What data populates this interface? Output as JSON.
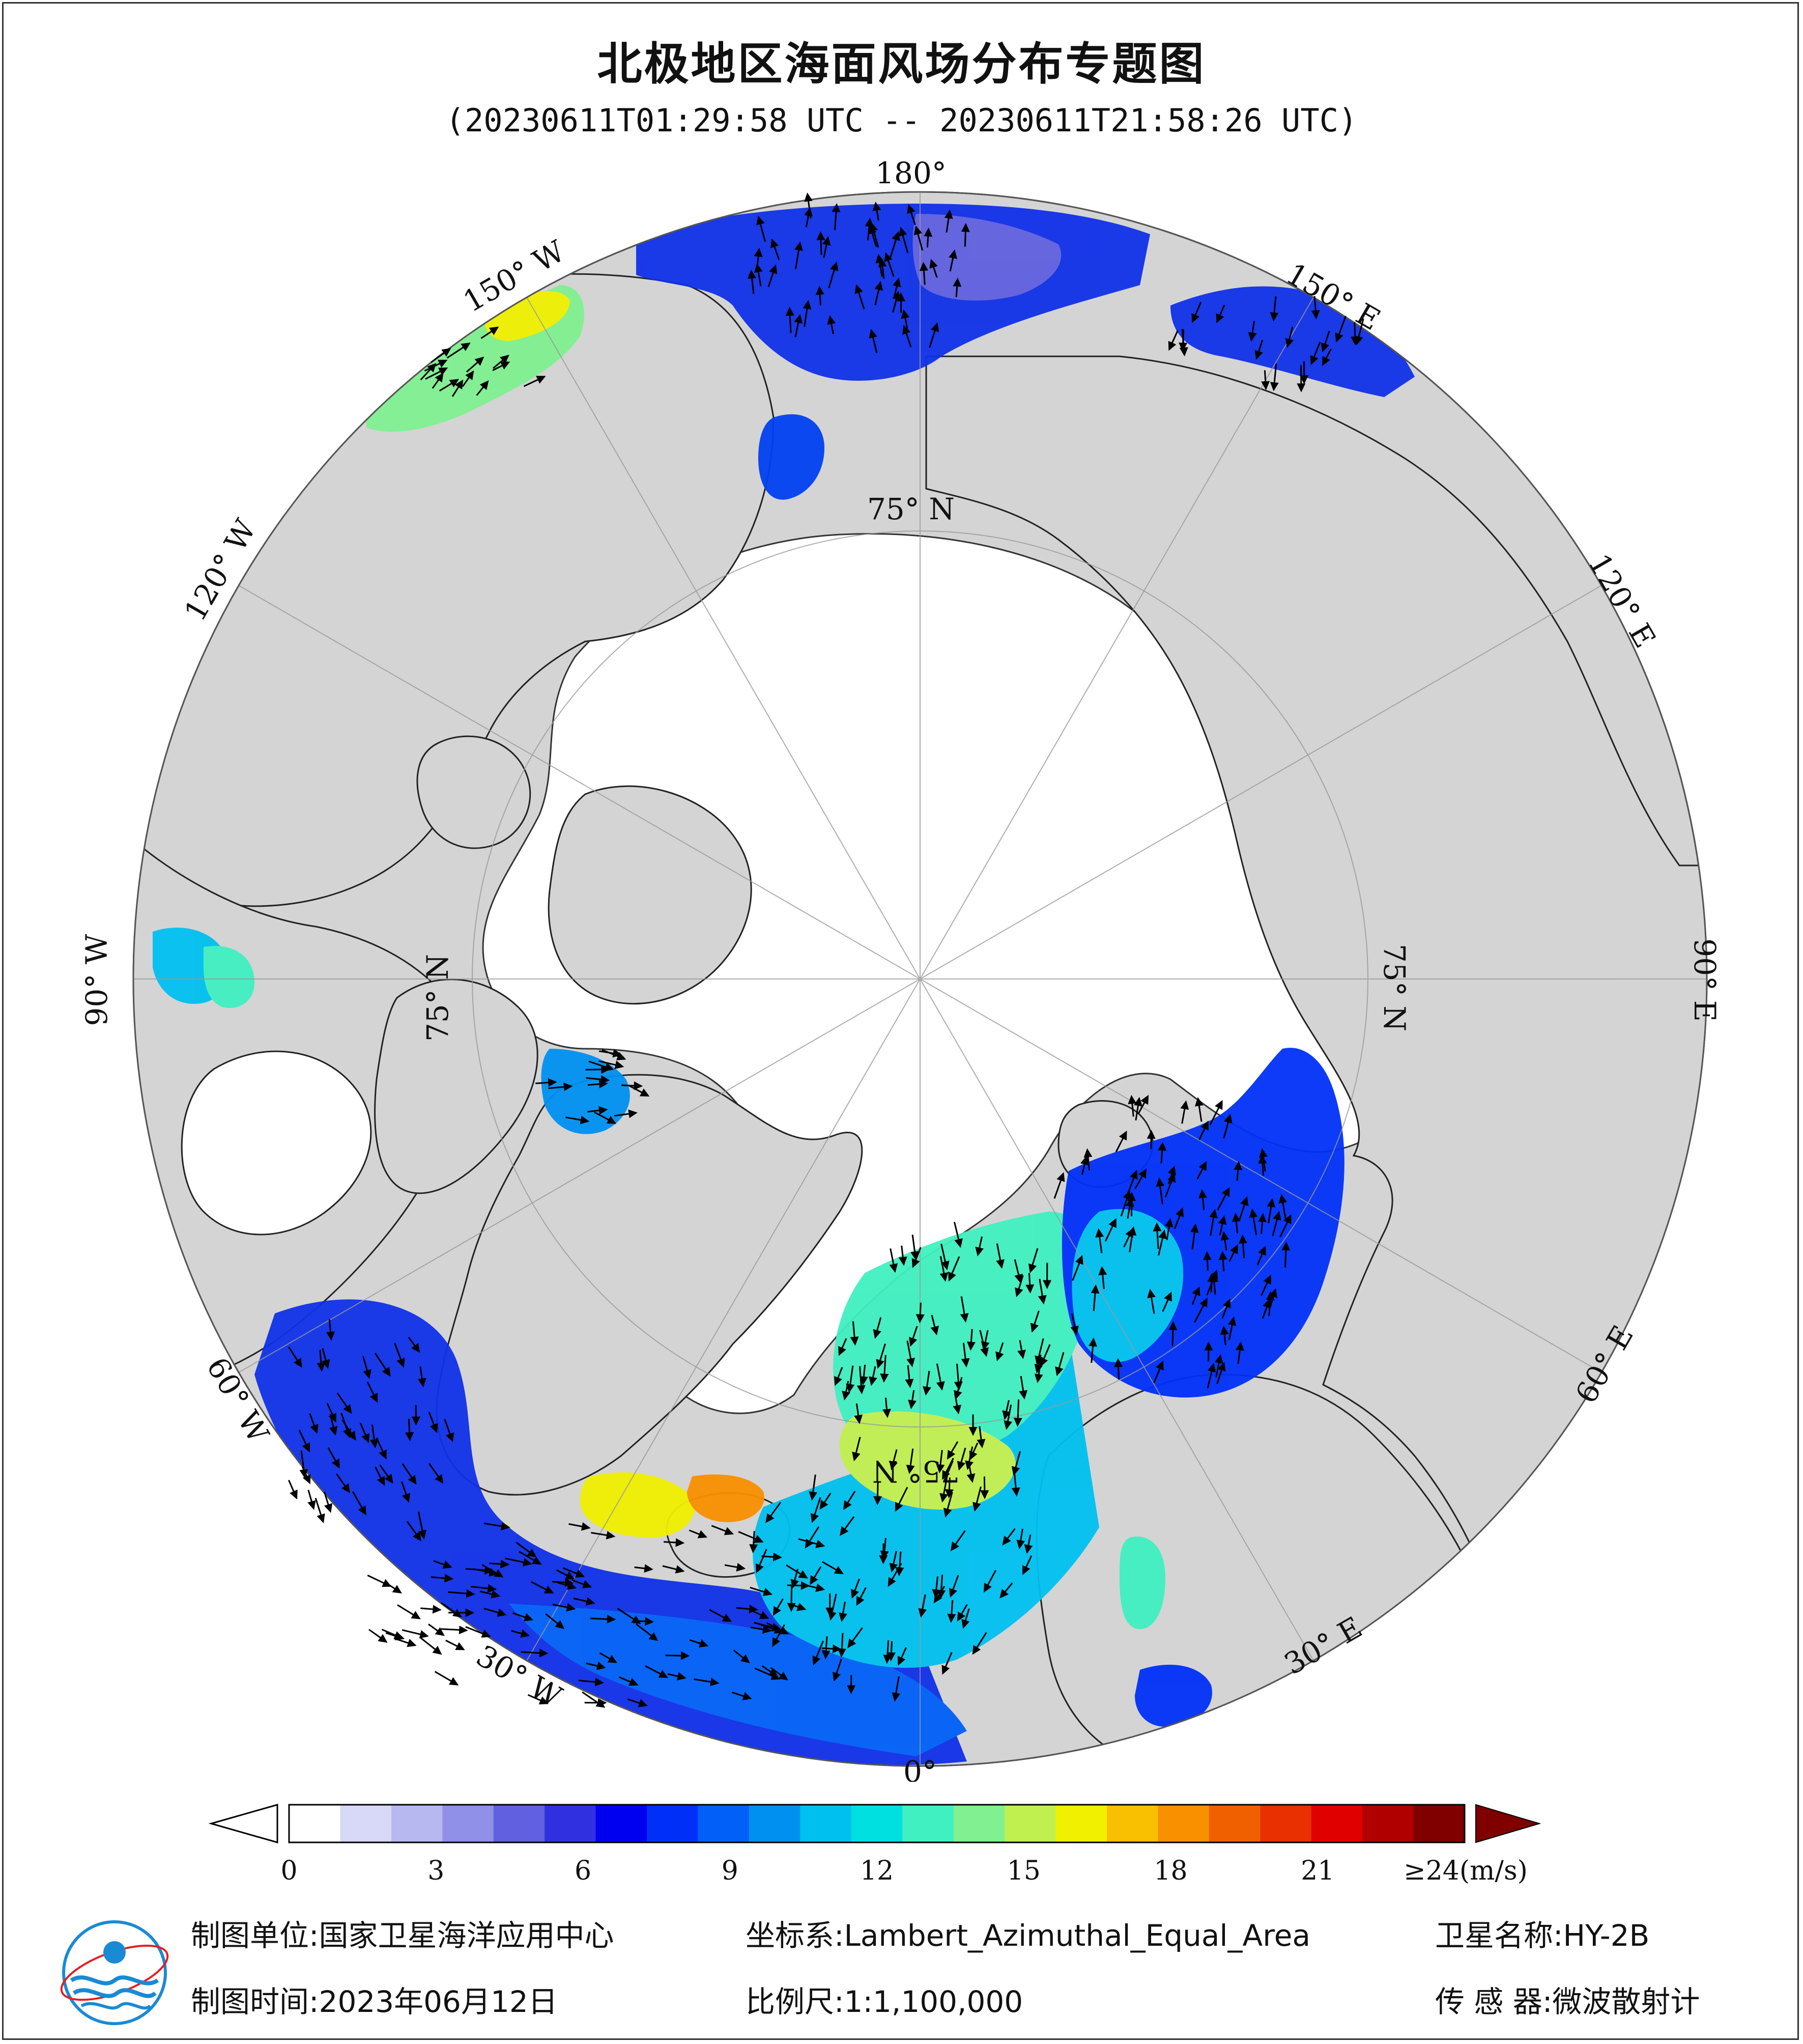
{
  "title": "北极地区海面风场分布专题图",
  "subtitle": "(20230611T01:29:58 UTC -- 20230611T21:58:26 UTC)",
  "map": {
    "projection_center": "North Pole",
    "longitude_labels": [
      {
        "lon": 180,
        "text": "180°"
      },
      {
        "lon": -150,
        "text": "150° W"
      },
      {
        "lon": 150,
        "text": "150° E"
      },
      {
        "lon": -120,
        "text": "120° W"
      },
      {
        "lon": 120,
        "text": "120° E"
      },
      {
        "lon": -90,
        "text": "90° W"
      },
      {
        "lon": 90,
        "text": "90° E"
      },
      {
        "lon": -60,
        "text": "60° W"
      },
      {
        "lon": 60,
        "text": "60° E"
      },
      {
        "lon": -30,
        "text": "30° W"
      },
      {
        "lon": 30,
        "text": "30° E"
      },
      {
        "lon": 0,
        "text": "0°"
      }
    ],
    "latitude_labels": [
      "75° N",
      "75° N",
      "75° N",
      "75° N"
    ],
    "colors": {
      "ocean_land": "#d4d4d4",
      "sea_ice": "#ffffff",
      "grid": "#999999"
    }
  },
  "colorbar": {
    "unit_label": "≥24(m/s)",
    "ticks": [
      "0",
      "3",
      "6",
      "9",
      "12",
      "15",
      "18",
      "21"
    ],
    "tick_values": [
      0,
      3,
      6,
      9,
      12,
      15,
      18,
      21
    ],
    "range": [
      0,
      24
    ],
    "colors": [
      "#ffffff",
      "#d8d8f8",
      "#b8b8f0",
      "#9090e8",
      "#6060e0",
      "#3030e0",
      "#0000f0",
      "#0030f8",
      "#0060f8",
      "#0090f0",
      "#00c0f0",
      "#00e0e0",
      "#40f0c0",
      "#80f090",
      "#c0f050",
      "#f0f000",
      "#f8c000",
      "#f89000",
      "#f06000",
      "#e83000",
      "#e00000",
      "#b00000",
      "#800000"
    ]
  },
  "info": {
    "unit_label": "制图单位:",
    "unit_value": "国家卫星海洋应用中心",
    "crs_label": "坐标系:",
    "crs_value": "Lambert_Azimuthal_Equal_Area",
    "satellite_label": "卫星名称:",
    "satellite_value": "HY-2B",
    "date_label": "制图时间:",
    "date_value": "2023年06月12日",
    "scale_label": "比例尺:",
    "scale_value": "1:1,100,000",
    "sensor_label": "传 感 器:",
    "sensor_value": "微波散射计"
  },
  "icons": {
    "logo": "nsoas-logo-icon"
  }
}
